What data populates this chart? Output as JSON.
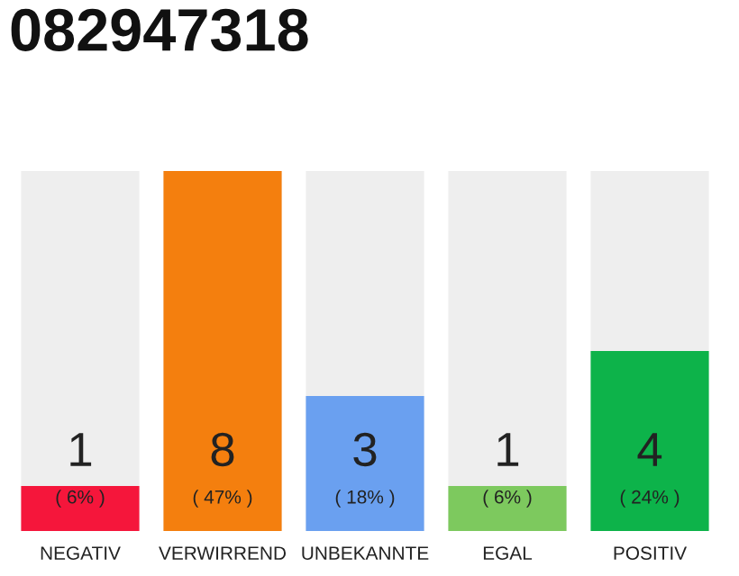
{
  "chart_data": {
    "type": "bar",
    "title": "082947318",
    "categories": [
      "NEGATIV",
      "VERWIRREND",
      "UNBEKANNTE",
      "EGAL",
      "POSITIV"
    ],
    "values": [
      1,
      8,
      3,
      1,
      4
    ],
    "colors": [
      "#f5163b",
      "#f47f0e",
      "#6aa0f0",
      "#7dc95e",
      "#0db34a"
    ],
    "value_labels": [
      "1\n( 6% )",
      "8\n( 47% )",
      "3\n( 18% )",
      "1\n( 6% )",
      "4\n( 24% )"
    ],
    "ylim": [
      0,
      8
    ],
    "grid": false,
    "legend": false
  }
}
